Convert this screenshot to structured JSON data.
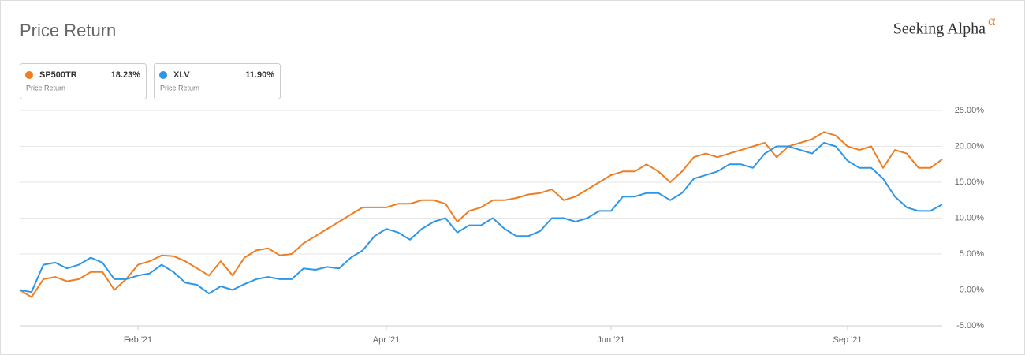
{
  "title": "Price Return",
  "brand": "Seeking Alpha",
  "brand_symbol": "α",
  "chart_data": {
    "type": "line",
    "categories": [
      null,
      null,
      null,
      null,
      null,
      null,
      null,
      null,
      null,
      null,
      "Feb '21",
      null,
      null,
      null,
      null,
      null,
      null,
      null,
      null,
      null,
      null,
      null,
      null,
      null,
      null,
      null,
      null,
      null,
      null,
      null,
      null,
      "Apr '21",
      null,
      null,
      null,
      null,
      null,
      null,
      null,
      null,
      null,
      null,
      null,
      null,
      null,
      null,
      null,
      null,
      null,
      null,
      "Jun '21",
      null,
      null,
      null,
      null,
      null,
      null,
      null,
      null,
      null,
      null,
      null,
      null,
      null,
      null,
      null,
      null,
      null,
      null,
      null,
      "Sep '21",
      null,
      null,
      null,
      null,
      null,
      null,
      null,
      null
    ],
    "series": [
      {
        "name": "SP500TR",
        "color": "#ef7d22",
        "subtitle": "Price Return",
        "last_value": 18.23,
        "last_value_label": "18.23%",
        "values": [
          0,
          -1,
          1.5,
          1.8,
          1.2,
          1.5,
          2.5,
          2.5,
          0,
          1.5,
          3.5,
          4.0,
          4.8,
          4.7,
          4.0,
          3.0,
          2.0,
          4.0,
          2.0,
          4.5,
          5.5,
          5.8,
          4.8,
          5.0,
          6.5,
          7.5,
          8.5,
          9.5,
          10.5,
          11.5,
          11.5,
          11.5,
          12.0,
          12.0,
          12.5,
          12.5,
          12.0,
          9.5,
          11.0,
          11.5,
          12.5,
          12.5,
          12.8,
          13.3,
          13.5,
          14.0,
          12.5,
          13.0,
          14.0,
          15.0,
          16.0,
          16.5,
          16.5,
          17.5,
          16.5,
          15.0,
          16.5,
          18.5,
          19.0,
          18.5,
          19.0,
          19.5,
          20.0,
          20.5,
          18.5,
          20.0,
          20.5,
          21.0,
          22.0,
          21.5,
          20.0,
          19.5,
          20.0,
          17.0,
          19.5,
          19.0,
          17.0,
          17.0,
          18.2
        ]
      },
      {
        "name": "XLV",
        "color": "#2e96e6",
        "subtitle": "Price Return",
        "last_value": 11.9,
        "last_value_label": "11.90%",
        "values": [
          0,
          -0.3,
          3.5,
          3.8,
          3.0,
          3.5,
          4.5,
          3.8,
          1.5,
          1.5,
          2.0,
          2.3,
          3.5,
          2.5,
          1.0,
          0.7,
          -0.5,
          0.5,
          0.0,
          0.8,
          1.5,
          1.8,
          1.5,
          1.5,
          3.0,
          2.8,
          3.2,
          3.0,
          4.5,
          5.5,
          7.5,
          8.5,
          8.0,
          7.0,
          8.5,
          9.5,
          10.0,
          8.0,
          9.0,
          9.0,
          10.0,
          8.5,
          7.5,
          7.5,
          8.2,
          10.0,
          10.0,
          9.5,
          10.0,
          11.0,
          11.0,
          13.0,
          13.0,
          13.5,
          13.5,
          12.5,
          13.5,
          15.5,
          16.0,
          16.5,
          17.5,
          17.5,
          17.0,
          19.0,
          20.0,
          20.0,
          19.5,
          19.0,
          20.5,
          20.0,
          18.0,
          17.0,
          17.0,
          15.5,
          13.0,
          11.5,
          11.0,
          11.0,
          11.9
        ]
      }
    ],
    "ylim": [
      -5,
      25
    ],
    "yticks": [
      {
        "value": -5,
        "label": "-5.00%"
      },
      {
        "value": 0,
        "label": "0.00%"
      },
      {
        "value": 5,
        "label": "5.00%"
      },
      {
        "value": 10,
        "label": "10.00%"
      },
      {
        "value": 15,
        "label": "15.00%"
      },
      {
        "value": 20,
        "label": "20.00%"
      },
      {
        "value": 25,
        "label": "25.00%"
      }
    ],
    "grid": true
  }
}
